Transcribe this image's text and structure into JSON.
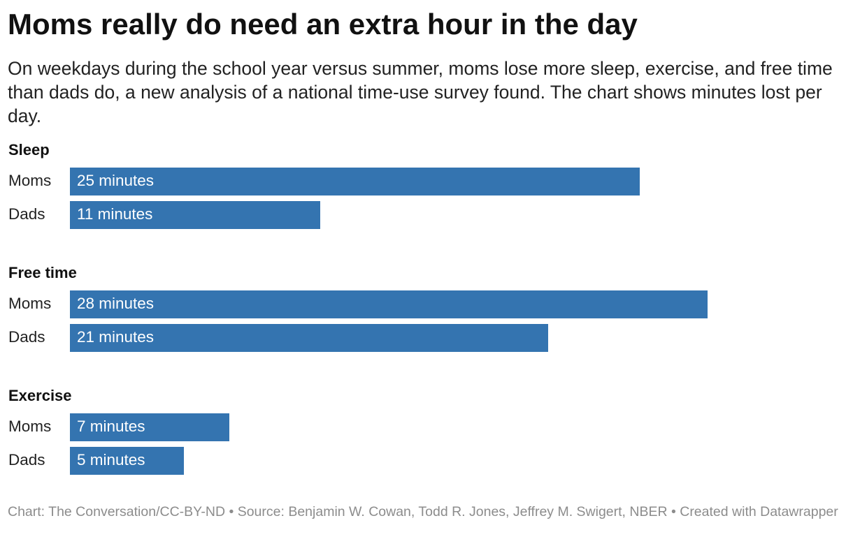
{
  "title": "Moms really do need an extra hour in the day",
  "subtitle": "On weekdays during the school year versus summer, moms lose more sleep, exercise, and free time than dads do, a new analysis of a national time-use survey found. The chart shows minutes lost per day.",
  "notes": "Chart: The Conversation/CC-BY-ND • Source: Benjamin W. Cowan, Todd R. Jones, Jeffrey M. Swigert, NBER • Created with Datawrapper",
  "chart_data": {
    "type": "bar",
    "orientation": "horizontal",
    "bar_color": "#3474b0",
    "unit": "minutes lost per day",
    "xlim": [
      0,
      31
    ],
    "grid": false,
    "groups": [
      {
        "name": "Sleep",
        "rows": [
          {
            "label": "Moms",
            "value": 25,
            "value_label": "25 minutes"
          },
          {
            "label": "Dads",
            "value": 11,
            "value_label": "11 minutes"
          }
        ]
      },
      {
        "name": "Free time",
        "rows": [
          {
            "label": "Moms",
            "value": 28,
            "value_label": "28 minutes"
          },
          {
            "label": "Dads",
            "value": 21,
            "value_label": "21 minutes"
          }
        ]
      },
      {
        "name": "Exercise",
        "rows": [
          {
            "label": "Moms",
            "value": 7,
            "value_label": "7 minutes"
          },
          {
            "label": "Dads",
            "value": 5,
            "value_label": "5 minutes"
          }
        ]
      }
    ]
  }
}
